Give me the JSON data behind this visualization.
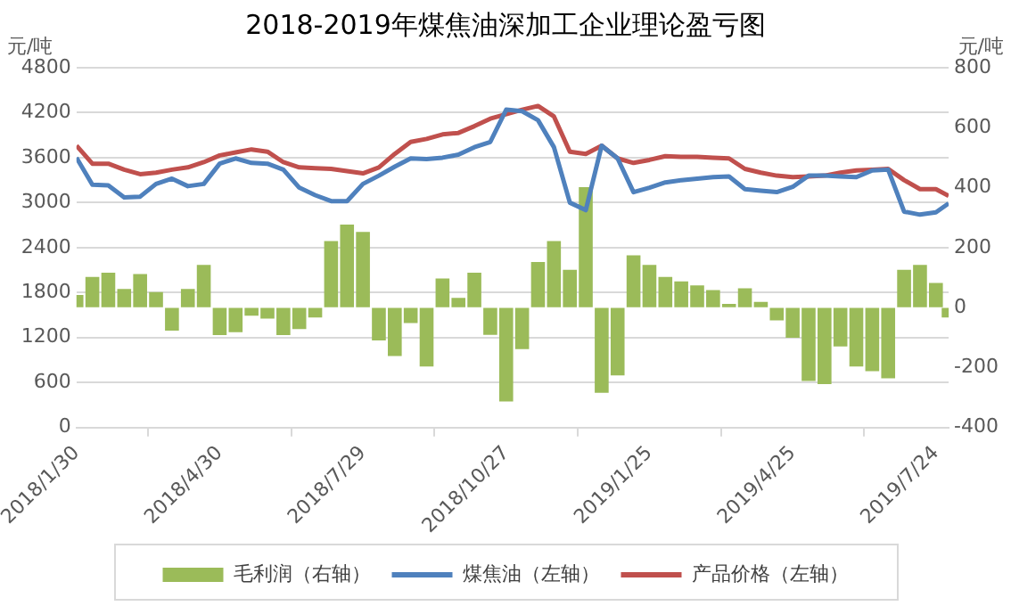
{
  "chart_data": {
    "type": "line",
    "title": "2018-2019年煤焦油深加工企业理论盈亏图",
    "ylabel": "元/吨",
    "y2label": "元/吨",
    "x": [
      "2018-01-30",
      "2018-02-09",
      "2018-02-19",
      "2018-03-01",
      "2018-03-11",
      "2018-03-21",
      "2018-03-31",
      "2018-04-10",
      "2018-04-20",
      "2018-04-30",
      "2018-05-10",
      "2018-05-20",
      "2018-05-30",
      "2018-06-09",
      "2018-06-19",
      "2018-06-29",
      "2018-07-09",
      "2018-07-19",
      "2018-07-29",
      "2018-08-08",
      "2018-08-18",
      "2018-08-28",
      "2018-09-07",
      "2018-09-17",
      "2018-09-27",
      "2018-10-07",
      "2018-10-17",
      "2018-10-27",
      "2018-11-06",
      "2018-11-16",
      "2018-11-26",
      "2018-12-06",
      "2018-12-16",
      "2018-12-26",
      "2019-01-05",
      "2019-01-15",
      "2019-01-25",
      "2019-02-04",
      "2019-02-14",
      "2019-02-24",
      "2019-03-06",
      "2019-03-16",
      "2019-03-26",
      "2019-04-05",
      "2019-04-15",
      "2019-04-25",
      "2019-05-05",
      "2019-05-15",
      "2019-05-25",
      "2019-06-04",
      "2019-06-14",
      "2019-06-24",
      "2019-07-04",
      "2019-07-14",
      "2019-07-24",
      "2019-08-01"
    ],
    "series": [
      {
        "name": "毛利润（右轴）",
        "type": "bar",
        "axis": "y2",
        "color": "#9bbb59",
        "values": [
          40,
          100,
          114,
          60,
          110,
          50,
          -75,
          60,
          140,
          -90,
          -80,
          -25,
          -35,
          -90,
          -70,
          -31,
          220,
          275,
          250,
          -108,
          -160,
          -50,
          -195,
          95,
          30,
          114,
          -89,
          -311,
          -137,
          150,
          220,
          124,
          400,
          -282,
          -224,
          172,
          140,
          100,
          85,
          72,
          56,
          10,
          62,
          17,
          -41,
          -99,
          -243,
          -253,
          -128,
          -195,
          -210,
          -234,
          124,
          140,
          80,
          -31
        ]
      },
      {
        "name": "煤焦油（左轴）",
        "color": "#4f81bd",
        "values": [
          3600,
          3240,
          3230,
          3070,
          3080,
          3250,
          3320,
          3220,
          3250,
          3520,
          3590,
          3530,
          3520,
          3440,
          3200,
          3100,
          3020,
          3020,
          3250,
          3360,
          3480,
          3590,
          3580,
          3600,
          3640,
          3740,
          3810,
          4240,
          4220,
          4100,
          3740,
          3000,
          2900,
          3760,
          3590,
          3140,
          3200,
          3270,
          3300,
          3320,
          3340,
          3350,
          3180,
          3160,
          3140,
          3210,
          3360,
          3360,
          3350,
          3340,
          3430,
          3440,
          2880,
          2840,
          2870,
          2990
        ]
      },
      {
        "name": "产品价格（左轴）",
        "color": "#c0504d",
        "values": [
          3760,
          3520,
          3520,
          3440,
          3380,
          3400,
          3440,
          3470,
          3540,
          3630,
          3670,
          3710,
          3680,
          3540,
          3470,
          3460,
          3450,
          3420,
          3390,
          3470,
          3650,
          3810,
          3850,
          3910,
          3930,
          4020,
          4120,
          4180,
          4240,
          4290,
          4150,
          3680,
          3650,
          3760,
          3590,
          3530,
          3570,
          3620,
          3610,
          3610,
          3600,
          3590,
          3450,
          3400,
          3360,
          3340,
          3350,
          3360,
          3400,
          3430,
          3440,
          3450,
          3300,
          3180,
          3180,
          3090
        ]
      }
    ],
    "xlim": [
      "2018-01-30",
      "2019-08-01"
    ],
    "xticks": [
      {
        "value": "2018-01-30",
        "label": "2018/1/30"
      },
      {
        "value": "2018-04-30",
        "label": "2018/4/30"
      },
      {
        "value": "2018-07-29",
        "label": "2018/7/29"
      },
      {
        "value": "2018-10-27",
        "label": "2018/10/27"
      },
      {
        "value": "2019-01-25",
        "label": "2019/1/25"
      },
      {
        "value": "2019-04-25",
        "label": "2019/4/25"
      },
      {
        "value": "2019-07-24",
        "label": "2019/7/24"
      }
    ],
    "ylim": [
      0,
      4800
    ],
    "yticks": [
      0,
      600,
      1200,
      1800,
      2400,
      3000,
      3600,
      4200,
      4800
    ],
    "y2lim": [
      -400,
      800
    ],
    "y2ticks": [
      -400,
      -200,
      0,
      200,
      400,
      600,
      800
    ],
    "grid": "y",
    "legend": "bottom",
    "marker": "none",
    "line_style": "solid"
  }
}
